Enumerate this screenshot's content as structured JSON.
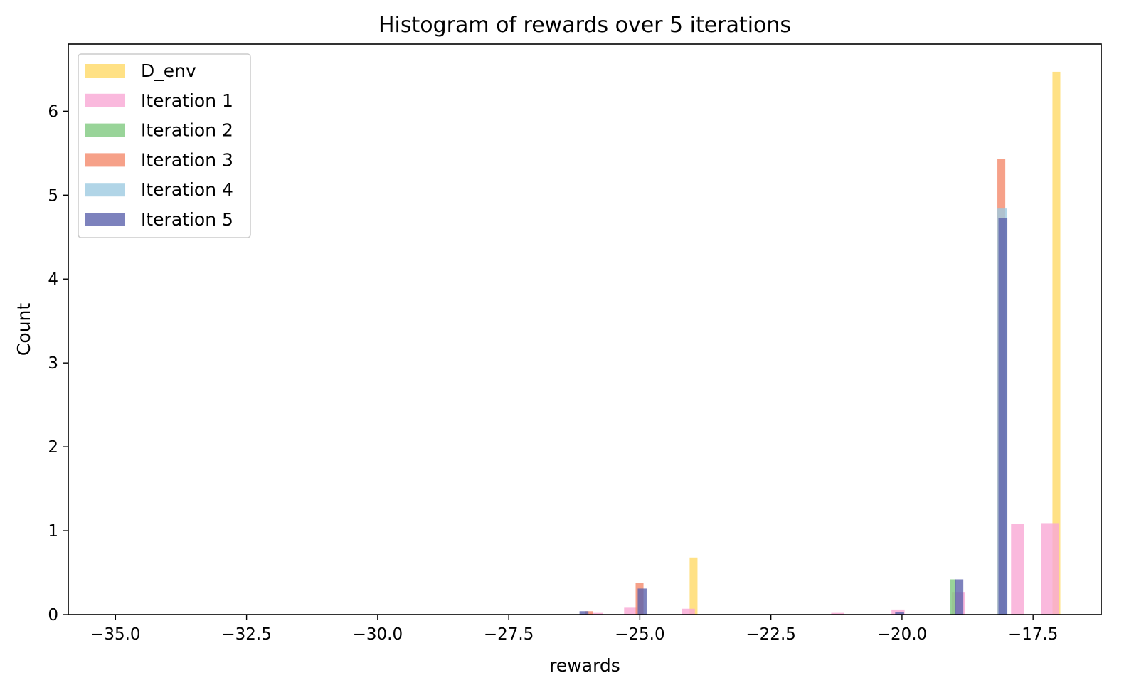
{
  "chart_data": {
    "type": "bar",
    "title": "Histogram of rewards over 5 iterations",
    "xlabel": "rewards",
    "ylabel": "Count",
    "xlim": [
      -35.9,
      -16.2
    ],
    "ylim": [
      0,
      6.8
    ],
    "x_ticks": [
      -35.0,
      -32.5,
      -30.0,
      -27.5,
      -25.0,
      -22.5,
      -20.0,
      -17.5
    ],
    "x_tick_labels": [
      "−35.0",
      "−32.5",
      "−30.0",
      "−27.5",
      "−25.0",
      "−22.5",
      "−20.0",
      "−17.5"
    ],
    "y_ticks": [
      0,
      1,
      2,
      3,
      4,
      5,
      6
    ],
    "y_tick_labels": [
      "0",
      "1",
      "2",
      "3",
      "4",
      "5",
      "6"
    ],
    "grid": false,
    "legend_position": "top-left",
    "series": [
      {
        "name": "D_env",
        "color": "#ffd966",
        "bars": [
          {
            "x0": -24.05,
            "x1": -23.9,
            "value": 0.68
          },
          {
            "x0": -17.13,
            "x1": -16.98,
            "value": 6.47
          }
        ]
      },
      {
        "name": "Iteration 1",
        "color": "#f9a8d4",
        "bars": [
          {
            "x0": -25.95,
            "x1": -25.7,
            "value": 0.02
          },
          {
            "x0": -25.3,
            "x1": -25.05,
            "value": 0.09
          },
          {
            "x0": -24.2,
            "x1": -23.95,
            "value": 0.07
          },
          {
            "x0": -21.35,
            "x1": -21.1,
            "value": 0.02
          },
          {
            "x0": -20.2,
            "x1": -19.95,
            "value": 0.06
          },
          {
            "x0": -19.05,
            "x1": -18.8,
            "value": 0.27
          },
          {
            "x0": -17.92,
            "x1": -17.67,
            "value": 1.08
          },
          {
            "x0": -17.34,
            "x1": -17.0,
            "value": 1.09
          }
        ]
      },
      {
        "name": "Iteration 2",
        "color": "#7fc97f",
        "bars": [
          {
            "x0": -19.08,
            "x1": -18.97,
            "value": 0.42
          }
        ]
      },
      {
        "name": "Iteration 3",
        "color": "#f4896b",
        "bars": [
          {
            "x0": -26.05,
            "x1": -25.9,
            "value": 0.04
          },
          {
            "x0": -25.08,
            "x1": -24.93,
            "value": 0.38
          },
          {
            "x0": -18.18,
            "x1": -18.03,
            "value": 5.43
          }
        ]
      },
      {
        "name": "Iteration 4",
        "color": "#9ecae1",
        "bars": [
          {
            "x0": -18.18,
            "x1": -18.0,
            "value": 4.84
          }
        ]
      },
      {
        "name": "Iteration 5",
        "color": "#5d63ad",
        "bars": [
          {
            "x0": -26.15,
            "x1": -25.98,
            "value": 0.04
          },
          {
            "x0": -25.04,
            "x1": -24.87,
            "value": 0.31
          },
          {
            "x0": -20.13,
            "x1": -19.96,
            "value": 0.03
          },
          {
            "x0": -18.99,
            "x1": -18.83,
            "value": 0.42
          },
          {
            "x0": -18.16,
            "x1": -17.99,
            "value": 4.73
          }
        ]
      }
    ]
  }
}
